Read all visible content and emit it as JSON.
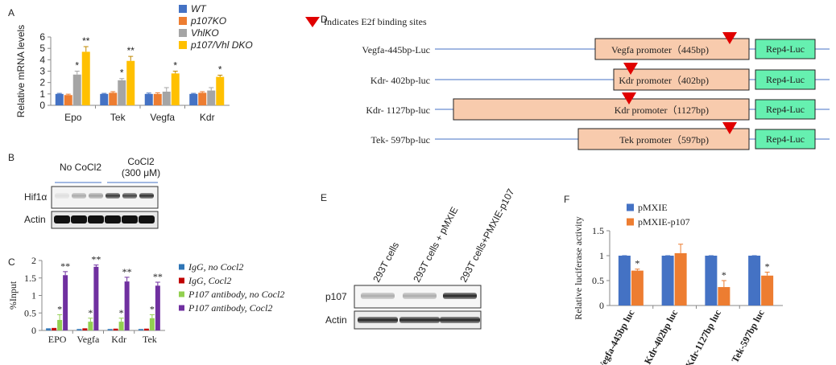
{
  "panels": [
    "A",
    "B",
    "C",
    "D",
    "E",
    "F"
  ],
  "chart_data": [
    {
      "type": "bar",
      "y_label": "Relative mRNA levels",
      "categories": [
        "Epo",
        "Tek",
        "Vegfa",
        "Kdr"
      ],
      "ylim": [
        0,
        6
      ],
      "yticks": [
        0,
        1,
        2,
        3,
        4,
        5,
        6
      ],
      "series": [
        {
          "name": "WT",
          "color": "#4472c4",
          "values": [
            1,
            1,
            1,
            1
          ],
          "errors": [
            0.05,
            0.05,
            0.08,
            0.05
          ],
          "significance": [
            null,
            null,
            null,
            null
          ]
        },
        {
          "name": "p107KO",
          "color": "#ed7d31",
          "values": [
            0.9,
            1.1,
            1,
            1.1
          ],
          "errors": [
            0.08,
            0.1,
            0.1,
            0.1
          ],
          "significance": [
            null,
            null,
            null,
            null
          ]
        },
        {
          "name": "VhlKO",
          "color": "#a5a5a5",
          "values": [
            2.7,
            2.2,
            1.2,
            1.3
          ],
          "errors": [
            0.3,
            0.15,
            0.35,
            0.25
          ],
          "significance": [
            "*",
            "*",
            null,
            null
          ]
        },
        {
          "name": "p107/Vhl DKO",
          "color": "#ffc000",
          "values": [
            4.7,
            3.9,
            2.8,
            2.5
          ],
          "errors": [
            0.45,
            0.4,
            0.2,
            0.15
          ],
          "significance": [
            "**",
            "**",
            "*",
            "*"
          ]
        }
      ]
    },
    {
      "type": "bar",
      "y_label": "%Input",
      "categories": [
        "EPO",
        "Vegfa",
        "Kdr",
        "Tek"
      ],
      "ylim": [
        0,
        2
      ],
      "yticks": [
        0,
        0.5,
        1,
        1.5,
        2
      ],
      "series": [
        {
          "name": "IgG, no Cocl2",
          "color": "#2e75b6",
          "values": [
            0.04,
            0.02,
            0.02,
            0.02
          ],
          "errors": [
            0.01,
            0.01,
            0.01,
            0.01
          ],
          "significance": [
            null,
            null,
            null,
            null
          ]
        },
        {
          "name": "IgG, Cocl2",
          "color": "#c00000",
          "values": [
            0.05,
            0.04,
            0.03,
            0.03
          ],
          "errors": [
            0.01,
            0.01,
            0.01,
            0.01
          ],
          "significance": [
            null,
            null,
            null,
            null
          ]
        },
        {
          "name": "P107 antibody, no Cocl2",
          "color": "#92d050",
          "values": [
            0.3,
            0.25,
            0.25,
            0.35
          ],
          "errors": [
            0.15,
            0.1,
            0.1,
            0.1
          ],
          "significance": [
            "*",
            "*",
            "*",
            "*"
          ]
        },
        {
          "name": "P107 antibody, Cocl2",
          "color": "#7030a0",
          "values": [
            1.58,
            1.82,
            1.4,
            1.28
          ],
          "errors": [
            0.1,
            0.05,
            0.12,
            0.1
          ],
          "significance": [
            "**",
            "**",
            "**",
            "**"
          ]
        }
      ]
    },
    {
      "type": "bar",
      "y_label": "Relative luciferase activity",
      "categories": [
        "Vegfa-445bp luc",
        "Kdr-402bp luc",
        "Kdr-1127bp luc",
        "Tek-597bp luc"
      ],
      "ylim": [
        0,
        1.5
      ],
      "yticks": [
        0,
        0.5,
        1,
        1.5
      ],
      "series": [
        {
          "name": "pMXIE",
          "color": "#4472c4",
          "values": [
            1,
            1,
            1,
            1
          ],
          "errors": [
            0,
            0,
            0,
            0
          ],
          "significance": [
            null,
            null,
            null,
            null
          ]
        },
        {
          "name": "pMXIE-p107",
          "color": "#ed7d31",
          "values": [
            0.7,
            1.05,
            0.37,
            0.6
          ],
          "errors": [
            0.03,
            0.18,
            0.13,
            0.07
          ],
          "significance": [
            "*",
            null,
            "*",
            "*"
          ]
        }
      ]
    }
  ],
  "blot_b": {
    "groups": [
      "No CoCl2",
      "CoCl2"
    ],
    "condition": "(300 μM)",
    "rows": [
      "Hif1α",
      "Actin"
    ]
  },
  "blot_e": {
    "lanes": [
      "293T cells",
      "293T cells + pMXIE",
      "293T cells+PMXIE-p107"
    ],
    "rows": [
      "p107",
      "Actin"
    ]
  },
  "diagram": {
    "legend": "Indicates E2f binding sites",
    "constructs": [
      {
        "label": "Vegfa-445bp-Luc",
        "promoter": "Vegfa promoter（445bp)",
        "reporter": "Rep4-Luc"
      },
      {
        "label": "Kdr- 402bp-luc",
        "promoter": "Kdr promoter（402bp)",
        "reporter": "Rep4-Luc"
      },
      {
        "label": "Kdr- 1127bp-luc",
        "promoter": "Kdr promoter（1127bp)",
        "reporter": "Rep4-Luc"
      },
      {
        "label": "Tek- 597bp-luc",
        "promoter": "Tek promoter（597bp)",
        "reporter": "Rep4-Luc"
      }
    ]
  }
}
